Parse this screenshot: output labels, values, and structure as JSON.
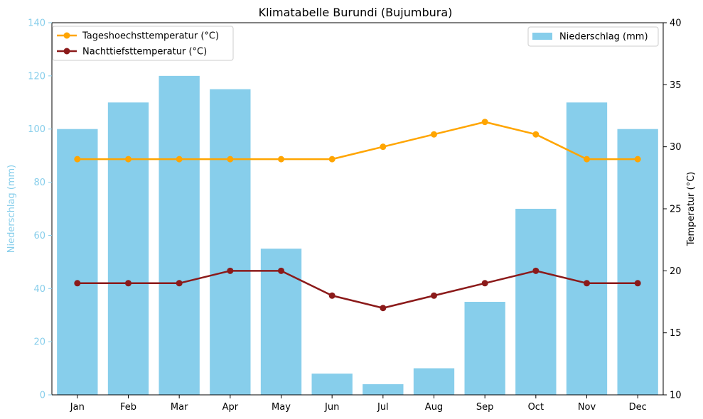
{
  "chart_data": {
    "type": "bar",
    "title": "Klimatabelle Burundi (Bujumbura)",
    "categories": [
      "Jan",
      "Feb",
      "Mar",
      "Apr",
      "May",
      "Jun",
      "Jul",
      "Aug",
      "Sep",
      "Oct",
      "Nov",
      "Dec"
    ],
    "bar_series": {
      "name": "Niederschlag (mm)",
      "values": [
        100,
        110,
        120,
        115,
        55,
        8,
        4,
        10,
        35,
        70,
        110,
        100
      ],
      "color": "#87ceeb",
      "axis": "left"
    },
    "line_series": [
      {
        "name": "Tageshoechsttemperatur (°C)",
        "values": [
          29,
          29,
          29,
          29,
          29,
          29,
          30,
          31,
          32,
          31,
          29,
          29
        ],
        "color": "#ffa500",
        "axis": "right"
      },
      {
        "name": "Nachttiefsttemperatur (°C)",
        "values": [
          19,
          19,
          19,
          20,
          20,
          18,
          17,
          18,
          19,
          20,
          19,
          19
        ],
        "color": "#8b1a1a",
        "axis": "right"
      }
    ],
    "left_axis": {
      "label": "Niederschlag (mm)",
      "range": [
        0,
        140
      ],
      "ticks": [
        0,
        20,
        40,
        60,
        80,
        100,
        120,
        140
      ],
      "color": "#87ceeb"
    },
    "right_axis": {
      "label": "Temperatur (°C)",
      "range": [
        10,
        40
      ],
      "ticks": [
        10,
        15,
        20,
        25,
        30,
        35,
        40
      ],
      "color": "#000000"
    },
    "grid": false,
    "legend_lines_position": "top-left",
    "legend_bars_position": "top-right"
  }
}
